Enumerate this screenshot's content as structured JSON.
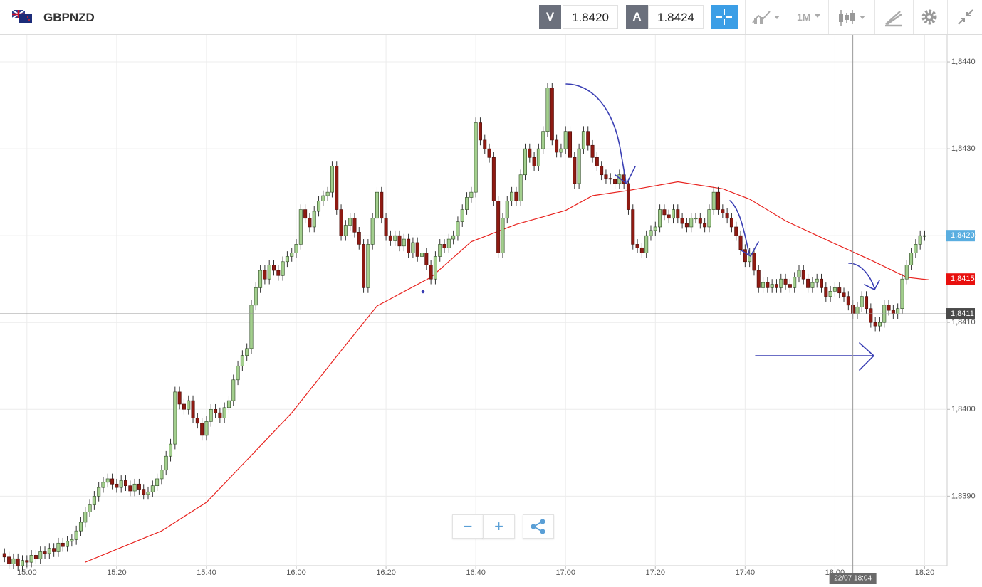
{
  "header": {
    "symbol": "GBPNZD",
    "bid_label": "V",
    "bid": "1.8420",
    "ask_label": "A",
    "ask": "1.8424",
    "timeframe": "1M"
  },
  "chart_data": {
    "type": "candlestick",
    "x": [
      895,
      896,
      897,
      898,
      899,
      900,
      901,
      902,
      903,
      904,
      905,
      906,
      907,
      908,
      909,
      910,
      911,
      912,
      913,
      914,
      915,
      916,
      917,
      918,
      919,
      920,
      921,
      922,
      923,
      924,
      925,
      926,
      927,
      928,
      929,
      930,
      931,
      932,
      933,
      934,
      935,
      936,
      937,
      938,
      939,
      940,
      941,
      942,
      943,
      944,
      945,
      946,
      947,
      948,
      949,
      950,
      951,
      952,
      953,
      954,
      955,
      956,
      957,
      958,
      959,
      960,
      961,
      962,
      963,
      964,
      965,
      966,
      967,
      968,
      969,
      970,
      971,
      972,
      973,
      974,
      975,
      976,
      977,
      978,
      979,
      980,
      981,
      982,
      983,
      984,
      985,
      986,
      987,
      988,
      989,
      990,
      991,
      992,
      993,
      994,
      995,
      996,
      997,
      998,
      999,
      1000,
      1001,
      1002,
      1003,
      1004,
      1005,
      1006,
      1007,
      1008,
      1009,
      1010,
      1011,
      1012,
      1013,
      1014,
      1015,
      1016,
      1017,
      1018,
      1019,
      1020,
      1021,
      1022,
      1023,
      1024,
      1025,
      1026,
      1027,
      1028,
      1029,
      1030,
      1031,
      1032,
      1033,
      1034,
      1035,
      1036,
      1037,
      1038,
      1039,
      1040,
      1041,
      1042,
      1043,
      1044,
      1045,
      1046,
      1047,
      1048,
      1049,
      1050,
      1051,
      1052,
      1053,
      1054,
      1055,
      1056,
      1057,
      1058,
      1059,
      1060,
      1061,
      1062,
      1063,
      1064,
      1065,
      1066,
      1067,
      1068,
      1069,
      1070,
      1071,
      1072,
      1073,
      1074,
      1075,
      1076,
      1077,
      1078,
      1079,
      1080,
      1081,
      1082,
      1083,
      1084,
      1085,
      1086,
      1087,
      1088,
      1089,
      1090,
      1091,
      1092,
      1093,
      1094,
      1095,
      1096,
      1097,
      1098,
      1099,
      1100
    ],
    "open": [
      1.83834,
      1.8383,
      1.83822,
      1.83828,
      1.8382,
      1.83826,
      1.83824,
      1.83832,
      1.83828,
      1.83836,
      1.83834,
      1.8384,
      1.83836,
      1.83846,
      1.83842,
      1.83848,
      1.8385,
      1.8386,
      1.8387,
      1.83882,
      1.8389,
      1.839,
      1.8391,
      1.83916,
      1.8392,
      1.83914,
      1.8391,
      1.83918,
      1.83912,
      1.83906,
      1.83914,
      1.83908,
      1.83902,
      1.83905,
      1.83912,
      1.8392,
      1.8393,
      1.83946,
      1.8396,
      1.8402,
      1.84006,
      1.84,
      1.8401,
      1.8399,
      1.83984,
      1.8397,
      1.83986,
      1.84,
      1.83996,
      1.8399,
      1.84002,
      1.8401,
      1.84034,
      1.8405,
      1.84062,
      1.8407,
      1.8412,
      1.8414,
      1.8416,
      1.8415,
      1.84166,
      1.8416,
      1.84154,
      1.8417,
      1.84176,
      1.8418,
      1.8419,
      1.8423,
      1.8422,
      1.8421,
      1.84228,
      1.8424,
      1.84246,
      1.8425,
      1.8428,
      1.8423,
      1.842,
      1.84212,
      1.8422,
      1.84204,
      1.8419,
      1.8414,
      1.8419,
      1.8422,
      1.8425,
      1.8422,
      1.842,
      1.84194,
      1.842,
      1.84188,
      1.84196,
      1.8418,
      1.84192,
      1.84176,
      1.8418,
      1.84166,
      1.8415,
      1.84176,
      1.8419,
      1.84186,
      1.84196,
      1.842,
      1.84216,
      1.8423,
      1.84244,
      1.8425,
      1.8433,
      1.8431,
      1.843,
      1.8429,
      1.8424,
      1.8418,
      1.8422,
      1.8424,
      1.8425,
      1.8424,
      1.8427,
      1.843,
      1.8429,
      1.8428,
      1.843,
      1.8432,
      1.8437,
      1.8431,
      1.84296,
      1.843,
      1.8432,
      1.8429,
      1.8426,
      1.843,
      1.8432,
      1.84304,
      1.8429,
      1.8428,
      1.8427,
      1.84266,
      1.84265,
      1.8426,
      1.8427,
      1.8426,
      1.8423,
      1.8419,
      1.84186,
      1.8418,
      1.842,
      1.84206,
      1.8421,
      1.8423,
      1.84224,
      1.8422,
      1.8423,
      1.8422,
      1.84214,
      1.8421,
      1.8422,
      1.8422,
      1.84214,
      1.8421,
      1.8423,
      1.8425,
      1.8423,
      1.84226,
      1.8422,
      1.8421,
      1.842,
      1.84184,
      1.8417,
      1.8418,
      1.8416,
      1.8414,
      1.84146,
      1.8414,
      1.84144,
      1.8414,
      1.8415,
      1.84144,
      1.8414,
      1.84152,
      1.8416,
      1.8415,
      1.8414,
      1.84146,
      1.8415,
      1.8414,
      1.8413,
      1.84136,
      1.8414,
      1.84134,
      1.8413,
      1.8412,
      1.8411,
      1.84118,
      1.8413,
      1.84116,
      1.841,
      1.84096,
      1.841,
      1.8412,
      1.84114,
      1.8411,
      1.84116,
      1.8415,
      1.84166,
      1.8418,
      1.8419,
      1.842
    ],
    "high": [
      1.8384,
      1.83836,
      1.83834,
      1.83834,
      1.83832,
      1.83832,
      1.83838,
      1.83838,
      1.83842,
      1.83842,
      1.83846,
      1.83846,
      1.83852,
      1.83852,
      1.83854,
      1.83856,
      1.83866,
      1.83876,
      1.83888,
      1.83896,
      1.83906,
      1.83916,
      1.83922,
      1.83926,
      1.83926,
      1.8392,
      1.83924,
      1.83924,
      1.83918,
      1.8392,
      1.8392,
      1.83914,
      1.83911,
      1.83918,
      1.83926,
      1.83936,
      1.83952,
      1.83966,
      1.84026,
      1.84026,
      1.84012,
      1.84016,
      1.84016,
      1.83996,
      1.8399,
      1.83992,
      1.84006,
      1.84006,
      1.84002,
      1.84008,
      1.84016,
      1.8404,
      1.84056,
      1.84068,
      1.84076,
      1.84126,
      1.84146,
      1.84166,
      1.84166,
      1.84172,
      1.84172,
      1.84166,
      1.84176,
      1.84182,
      1.84186,
      1.84196,
      1.84236,
      1.84236,
      1.84226,
      1.84234,
      1.84246,
      1.84252,
      1.84256,
      1.84286,
      1.84286,
      1.84236,
      1.84218,
      1.84226,
      1.84226,
      1.8421,
      1.84196,
      1.84196,
      1.84226,
      1.84256,
      1.84256,
      1.84226,
      1.84206,
      1.84206,
      1.84206,
      1.84202,
      1.84202,
      1.84198,
      1.84198,
      1.84186,
      1.84186,
      1.84172,
      1.84182,
      1.84196,
      1.84196,
      1.84202,
      1.84206,
      1.84222,
      1.84236,
      1.8425,
      1.84256,
      1.84336,
      1.84336,
      1.84316,
      1.84306,
      1.84296,
      1.84246,
      1.84226,
      1.84246,
      1.84256,
      1.84256,
      1.84276,
      1.84306,
      1.84306,
      1.84296,
      1.84306,
      1.84326,
      1.84376,
      1.84376,
      1.84316,
      1.84306,
      1.84326,
      1.84326,
      1.84296,
      1.84306,
      1.84326,
      1.84326,
      1.8431,
      1.84296,
      1.84286,
      1.84276,
      1.84272,
      1.84271,
      1.84276,
      1.84276,
      1.84266,
      1.84236,
      1.84196,
      1.84192,
      1.84206,
      1.84212,
      1.84216,
      1.84236,
      1.84236,
      1.8423,
      1.84236,
      1.84236,
      1.84226,
      1.8422,
      1.84226,
      1.84226,
      1.84226,
      1.8422,
      1.84236,
      1.84256,
      1.84256,
      1.84236,
      1.84232,
      1.84226,
      1.84216,
      1.84206,
      1.8419,
      1.84186,
      1.84186,
      1.84166,
      1.84152,
      1.84152,
      1.8415,
      1.8415,
      1.84156,
      1.84156,
      1.8415,
      1.84158,
      1.84166,
      1.84166,
      1.84156,
      1.84152,
      1.84156,
      1.84156,
      1.84146,
      1.84142,
      1.84146,
      1.84146,
      1.8414,
      1.84136,
      1.84126,
      1.84124,
      1.84136,
      1.84136,
      1.84122,
      1.84106,
      1.84106,
      1.84126,
      1.84126,
      1.8412,
      1.84122,
      1.84156,
      1.84172,
      1.84186,
      1.84196,
      1.84206,
      1.84206
    ],
    "low": [
      1.83824,
      1.83816,
      1.83816,
      1.83814,
      1.83814,
      1.83818,
      1.83818,
      1.83822,
      1.83822,
      1.83828,
      1.83828,
      1.8383,
      1.8383,
      1.83836,
      1.83836,
      1.83842,
      1.83844,
      1.83854,
      1.83864,
      1.83876,
      1.83884,
      1.83894,
      1.83904,
      1.8391,
      1.83908,
      1.83904,
      1.83904,
      1.83906,
      1.839,
      1.839,
      1.83902,
      1.83896,
      1.83896,
      1.83899,
      1.83906,
      1.83914,
      1.83924,
      1.8394,
      1.83954,
      1.84,
      1.83994,
      1.83994,
      1.83984,
      1.83978,
      1.83964,
      1.83964,
      1.8398,
      1.8399,
      1.83984,
      1.83984,
      1.83996,
      1.84004,
      1.84028,
      1.84044,
      1.84056,
      1.84064,
      1.84114,
      1.84134,
      1.84144,
      1.84144,
      1.84154,
      1.84148,
      1.84148,
      1.84164,
      1.8417,
      1.84174,
      1.84184,
      1.84214,
      1.84204,
      1.84204,
      1.84222,
      1.84234,
      1.8424,
      1.84244,
      1.84224,
      1.84194,
      1.84194,
      1.84206,
      1.84198,
      1.84184,
      1.84134,
      1.84134,
      1.84184,
      1.84214,
      1.84214,
      1.84194,
      1.84188,
      1.84188,
      1.84182,
      1.84182,
      1.84174,
      1.84174,
      1.8417,
      1.8417,
      1.8416,
      1.84144,
      1.84144,
      1.8417,
      1.8418,
      1.8418,
      1.8419,
      1.84194,
      1.8421,
      1.84224,
      1.84238,
      1.84244,
      1.84304,
      1.84294,
      1.84284,
      1.84234,
      1.84174,
      1.84174,
      1.84214,
      1.84234,
      1.84234,
      1.84234,
      1.84264,
      1.84284,
      1.84274,
      1.84274,
      1.84294,
      1.84314,
      1.84304,
      1.8429,
      1.8429,
      1.84294,
      1.84284,
      1.84254,
      1.84254,
      1.84294,
      1.84298,
      1.84284,
      1.84274,
      1.84264,
      1.8426,
      1.84259,
      1.84254,
      1.84254,
      1.84254,
      1.84224,
      1.84184,
      1.8418,
      1.84174,
      1.84174,
      1.84194,
      1.842,
      1.84204,
      1.84218,
      1.84214,
      1.84214,
      1.84214,
      1.84208,
      1.84204,
      1.84204,
      1.84214,
      1.84208,
      1.84204,
      1.84204,
      1.84224,
      1.84224,
      1.8422,
      1.84214,
      1.84204,
      1.84194,
      1.84178,
      1.84164,
      1.84164,
      1.84154,
      1.84134,
      1.84134,
      1.84134,
      1.84134,
      1.84134,
      1.84134,
      1.84138,
      1.84134,
      1.84134,
      1.84146,
      1.84144,
      1.84134,
      1.84134,
      1.8414,
      1.84134,
      1.84124,
      1.84124,
      1.8413,
      1.84128,
      1.84124,
      1.84114,
      1.84104,
      1.84104,
      1.84112,
      1.8411,
      1.84094,
      1.8409,
      1.8409,
      1.84094,
      1.84108,
      1.84104,
      1.84104,
      1.8411,
      1.84144,
      1.8416,
      1.84174,
      1.84184,
      1.84194
    ],
    "close": [
      1.8383,
      1.83822,
      1.83828,
      1.8382,
      1.83826,
      1.83824,
      1.83832,
      1.83828,
      1.83836,
      1.83834,
      1.8384,
      1.83836,
      1.83846,
      1.83842,
      1.83848,
      1.8385,
      1.8386,
      1.8387,
      1.83882,
      1.8389,
      1.839,
      1.8391,
      1.83916,
      1.8392,
      1.83914,
      1.8391,
      1.83918,
      1.83912,
      1.83906,
      1.83914,
      1.83908,
      1.83902,
      1.83905,
      1.83912,
      1.8392,
      1.8393,
      1.83946,
      1.8396,
      1.8402,
      1.84006,
      1.84,
      1.8401,
      1.8399,
      1.83984,
      1.8397,
      1.83986,
      1.84,
      1.83996,
      1.8399,
      1.84002,
      1.8401,
      1.84034,
      1.8405,
      1.84062,
      1.8407,
      1.8412,
      1.8414,
      1.8416,
      1.8415,
      1.84166,
      1.8416,
      1.84154,
      1.8417,
      1.84176,
      1.8418,
      1.8419,
      1.8423,
      1.8422,
      1.8421,
      1.84228,
      1.8424,
      1.84246,
      1.8425,
      1.8428,
      1.8423,
      1.842,
      1.84212,
      1.8422,
      1.84204,
      1.8419,
      1.8414,
      1.8419,
      1.8422,
      1.8425,
      1.8422,
      1.842,
      1.84194,
      1.842,
      1.84188,
      1.84196,
      1.8418,
      1.84192,
      1.84176,
      1.8418,
      1.84166,
      1.8415,
      1.84176,
      1.8419,
      1.84186,
      1.84196,
      1.842,
      1.84216,
      1.8423,
      1.84244,
      1.8425,
      1.8433,
      1.8431,
      1.843,
      1.8429,
      1.8424,
      1.8418,
      1.8422,
      1.8424,
      1.8425,
      1.8424,
      1.8427,
      1.843,
      1.8429,
      1.8428,
      1.843,
      1.8432,
      1.8437,
      1.8431,
      1.84296,
      1.843,
      1.8432,
      1.8429,
      1.8426,
      1.843,
      1.8432,
      1.84304,
      1.8429,
      1.8428,
      1.8427,
      1.84266,
      1.84265,
      1.8426,
      1.8427,
      1.8426,
      1.8423,
      1.8419,
      1.84186,
      1.8418,
      1.842,
      1.84206,
      1.8421,
      1.8423,
      1.84224,
      1.8422,
      1.8423,
      1.8422,
      1.84214,
      1.8421,
      1.8422,
      1.8422,
      1.84214,
      1.8421,
      1.8423,
      1.8425,
      1.8423,
      1.84226,
      1.8422,
      1.8421,
      1.842,
      1.84184,
      1.8417,
      1.8418,
      1.8416,
      1.8414,
      1.84146,
      1.8414,
      1.84144,
      1.8414,
      1.8415,
      1.84144,
      1.8414,
      1.84152,
      1.8416,
      1.8415,
      1.8414,
      1.84146,
      1.8415,
      1.8414,
      1.8413,
      1.84136,
      1.8414,
      1.84134,
      1.8413,
      1.8412,
      1.8411,
      1.84118,
      1.8413,
      1.84116,
      1.841,
      1.84096,
      1.841,
      1.8412,
      1.84114,
      1.8411,
      1.84116,
      1.8415,
      1.84166,
      1.8418,
      1.8419,
      1.842,
      1.842
    ],
    "colors": {
      "up": "#a3cf8e",
      "down": "#8e1a12"
    },
    "overlays": [
      {
        "type": "line",
        "color": "#e8231f",
        "x": [
          913,
          930,
          940,
          950,
          959,
          969,
          978,
          990,
          999,
          1009,
          1020,
          1026,
          1034,
          1045,
          1055,
          1061,
          1069,
          1079,
          1088,
          1096,
          1101
        ],
        "values": [
          1.83824,
          1.8386,
          1.83893,
          1.83947,
          1.83996,
          1.84061,
          1.84119,
          1.84152,
          1.84193,
          1.84213,
          1.84229,
          1.84246,
          1.84252,
          1.84262,
          1.84254,
          1.84242,
          1.84217,
          1.84193,
          1.84172,
          1.84152,
          1.84149
        ]
      }
    ],
    "xlim": [
      894,
      1105
    ],
    "ylim": [
      1.8382,
      1.84432
    ],
    "xticks": [
      {
        "value": 900,
        "label": "15:00"
      },
      {
        "value": 920,
        "label": "15:20"
      },
      {
        "value": 940,
        "label": "15:40"
      },
      {
        "value": 960,
        "label": "16:00"
      },
      {
        "value": 980,
        "label": "16:20"
      },
      {
        "value": 1000,
        "label": "16:40"
      },
      {
        "value": 1020,
        "label": "17:00"
      },
      {
        "value": 1040,
        "label": "17:20"
      },
      {
        "value": 1060,
        "label": "17:40"
      },
      {
        "value": 1080,
        "label": "18:00"
      },
      {
        "value": 1100,
        "label": "18:20"
      }
    ],
    "yticks": [
      {
        "value": 1.839,
        "label": "1,8390"
      },
      {
        "value": 1.84,
        "label": "1,8400"
      },
      {
        "value": 1.841,
        "label": "1,8410"
      },
      {
        "value": 1.842,
        "label": "1,8420"
      },
      {
        "value": 1.843,
        "label": "1,8430"
      },
      {
        "value": 1.844,
        "label": "1,8440"
      }
    ],
    "grid": true,
    "price_tags": [
      {
        "value": 1.842,
        "label": "1,8420",
        "color": "#5aaee0"
      },
      {
        "value": 1.8415,
        "label": "1,8415",
        "color": "#e8100e"
      }
    ],
    "crosshair": {
      "x": 1084,
      "x_label": "22/07 18:04",
      "y": {
        "value": 1.8411,
        "label": "1,8411"
      }
    }
  }
}
